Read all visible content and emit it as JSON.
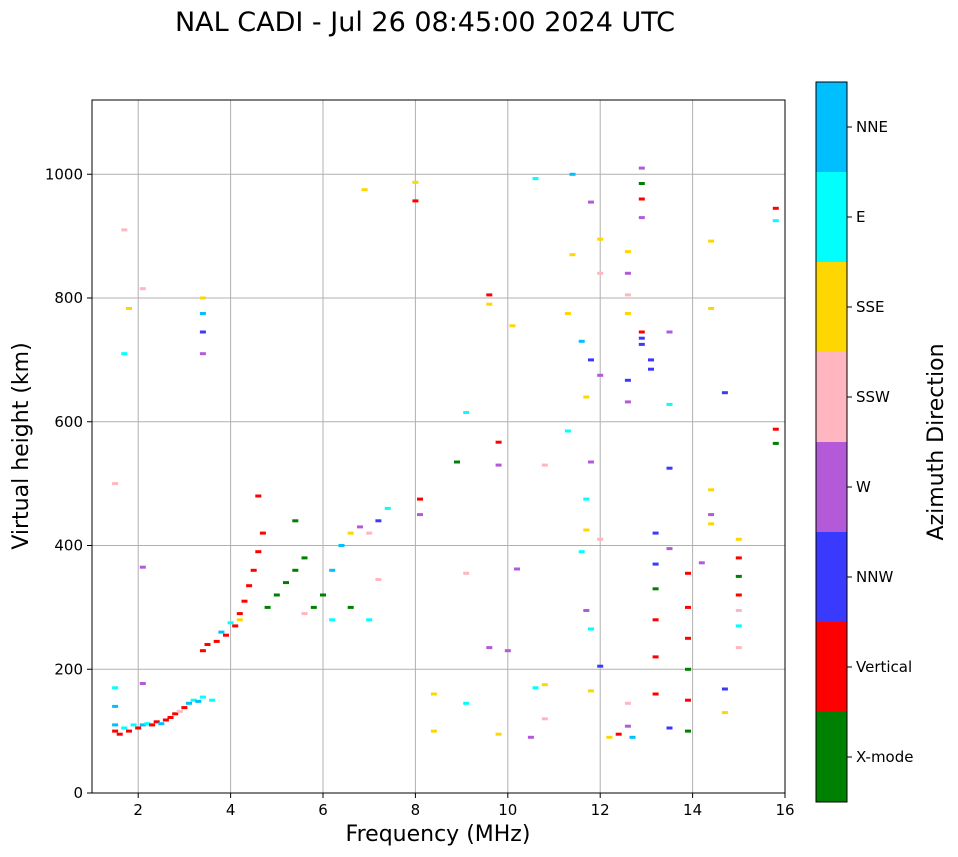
{
  "chart_data": {
    "type": "scatter",
    "title": "NAL CADI - Jul 26 08:45:00 2024 UTC",
    "xlabel": "Frequency (MHz)",
    "ylabel": "Virtual height (km)",
    "xlim": [
      1,
      16
    ],
    "ylim": [
      0,
      1120
    ],
    "xticks": [
      2,
      4,
      6,
      8,
      10,
      12,
      14,
      16
    ],
    "yticks": [
      0,
      200,
      400,
      600,
      800,
      1000
    ],
    "grid": true,
    "colorbar": {
      "label": "Azimuth Direction",
      "categories": [
        {
          "name": "X-mode",
          "color": "#008000"
        },
        {
          "name": "Vertical",
          "color": "#ff0000"
        },
        {
          "name": "NNW",
          "color": "#3a3aff"
        },
        {
          "name": "W",
          "color": "#b45ad8"
        },
        {
          "name": "SSW",
          "color": "#ffb6c1"
        },
        {
          "name": "SSE",
          "color": "#ffd700"
        },
        {
          "name": "E",
          "color": "#00ffff"
        },
        {
          "name": "NNE",
          "color": "#00bfff"
        }
      ]
    },
    "echoes": [
      {
        "f": 1.5,
        "h": 100,
        "d": "Vertical"
      },
      {
        "f": 1.5,
        "h": 110,
        "d": "NNE"
      },
      {
        "f": 1.5,
        "h": 140,
        "d": "NNE"
      },
      {
        "f": 1.5,
        "h": 170,
        "d": "E"
      },
      {
        "f": 1.6,
        "h": 95,
        "d": "Vertical"
      },
      {
        "f": 1.7,
        "h": 105,
        "d": "E"
      },
      {
        "f": 1.8,
        "h": 100,
        "d": "Vertical"
      },
      {
        "f": 1.9,
        "h": 110,
        "d": "E"
      },
      {
        "f": 2.0,
        "h": 105,
        "d": "Vertical"
      },
      {
        "f": 2.1,
        "h": 110,
        "d": "NNE"
      },
      {
        "f": 2.2,
        "h": 112,
        "d": "E"
      },
      {
        "f": 2.3,
        "h": 110,
        "d": "Vertical"
      },
      {
        "f": 2.4,
        "h": 115,
        "d": "Vertical"
      },
      {
        "f": 2.5,
        "h": 112,
        "d": "NNE"
      },
      {
        "f": 2.6,
        "h": 118,
        "d": "Vertical"
      },
      {
        "f": 2.7,
        "h": 122,
        "d": "Vertical"
      },
      {
        "f": 2.8,
        "h": 128,
        "d": "Vertical"
      },
      {
        "f": 2.9,
        "h": 132,
        "d": "SSW"
      },
      {
        "f": 3.0,
        "h": 138,
        "d": "Vertical"
      },
      {
        "f": 3.1,
        "h": 145,
        "d": "NNE"
      },
      {
        "f": 3.2,
        "h": 150,
        "d": "E"
      },
      {
        "f": 3.3,
        "h": 148,
        "d": "NNE"
      },
      {
        "f": 3.4,
        "h": 155,
        "d": "E"
      },
      {
        "f": 3.6,
        "h": 150,
        "d": "E"
      },
      {
        "f": 1.5,
        "h": 500,
        "d": "SSW"
      },
      {
        "f": 1.7,
        "h": 710,
        "d": "E"
      },
      {
        "f": 1.7,
        "h": 910,
        "d": "SSW"
      },
      {
        "f": 1.8,
        "h": 783,
        "d": "SSE"
      },
      {
        "f": 2.1,
        "h": 815,
        "d": "SSW"
      },
      {
        "f": 2.1,
        "h": 365,
        "d": "W"
      },
      {
        "f": 2.1,
        "h": 177,
        "d": "W"
      },
      {
        "f": 3.4,
        "h": 710,
        "d": "W"
      },
      {
        "f": 3.4,
        "h": 745,
        "d": "NNW"
      },
      {
        "f": 3.4,
        "h": 775,
        "d": "NNE"
      },
      {
        "f": 3.4,
        "h": 800,
        "d": "SSE"
      },
      {
        "f": 3.4,
        "h": 230,
        "d": "Vertical"
      },
      {
        "f": 3.5,
        "h": 240,
        "d": "Vertical"
      },
      {
        "f": 3.7,
        "h": 245,
        "d": "Vertical"
      },
      {
        "f": 3.9,
        "h": 255,
        "d": "Vertical"
      },
      {
        "f": 4.1,
        "h": 270,
        "d": "Vertical"
      },
      {
        "f": 4.2,
        "h": 290,
        "d": "Vertical"
      },
      {
        "f": 4.3,
        "h": 310,
        "d": "Vertical"
      },
      {
        "f": 4.4,
        "h": 335,
        "d": "Vertical"
      },
      {
        "f": 4.5,
        "h": 360,
        "d": "Vertical"
      },
      {
        "f": 4.6,
        "h": 390,
        "d": "Vertical"
      },
      {
        "f": 4.7,
        "h": 420,
        "d": "Vertical"
      },
      {
        "f": 4.6,
        "h": 480,
        "d": "Vertical"
      },
      {
        "f": 3.8,
        "h": 260,
        "d": "NNE"
      },
      {
        "f": 4.0,
        "h": 275,
        "d": "E"
      },
      {
        "f": 4.2,
        "h": 280,
        "d": "SSE"
      },
      {
        "f": 4.8,
        "h": 300,
        "d": "X-mode"
      },
      {
        "f": 5.0,
        "h": 320,
        "d": "X-mode"
      },
      {
        "f": 5.2,
        "h": 340,
        "d": "X-mode"
      },
      {
        "f": 5.4,
        "h": 360,
        "d": "X-mode"
      },
      {
        "f": 5.6,
        "h": 380,
        "d": "X-mode"
      },
      {
        "f": 5.8,
        "h": 300,
        "d": "X-mode"
      },
      {
        "f": 6.0,
        "h": 320,
        "d": "X-mode"
      },
      {
        "f": 5.4,
        "h": 440,
        "d": "X-mode"
      },
      {
        "f": 5.6,
        "h": 290,
        "d": "SSW"
      },
      {
        "f": 6.2,
        "h": 360,
        "d": "NNE"
      },
      {
        "f": 6.4,
        "h": 400,
        "d": "NNE"
      },
      {
        "f": 6.6,
        "h": 420,
        "d": "SSE"
      },
      {
        "f": 6.8,
        "h": 430,
        "d": "W"
      },
      {
        "f": 7.0,
        "h": 420,
        "d": "SSW"
      },
      {
        "f": 7.2,
        "h": 440,
        "d": "NNW"
      },
      {
        "f": 7.4,
        "h": 460,
        "d": "E"
      },
      {
        "f": 6.2,
        "h": 280,
        "d": "E"
      },
      {
        "f": 6.6,
        "h": 300,
        "d": "X-mode"
      },
      {
        "f": 7.0,
        "h": 280,
        "d": "E"
      },
      {
        "f": 7.2,
        "h": 345,
        "d": "SSW"
      },
      {
        "f": 6.9,
        "h": 975,
        "d": "SSE"
      },
      {
        "f": 8.0,
        "h": 957,
        "d": "Vertical"
      },
      {
        "f": 8.0,
        "h": 987,
        "d": "SSE"
      },
      {
        "f": 8.1,
        "h": 475,
        "d": "Vertical"
      },
      {
        "f": 8.1,
        "h": 450,
        "d": "W"
      },
      {
        "f": 8.4,
        "h": 160,
        "d": "SSE"
      },
      {
        "f": 8.4,
        "h": 100,
        "d": "SSE"
      },
      {
        "f": 8.9,
        "h": 535,
        "d": "X-mode"
      },
      {
        "f": 9.1,
        "h": 615,
        "d": "E"
      },
      {
        "f": 9.1,
        "h": 145,
        "d": "E"
      },
      {
        "f": 9.1,
        "h": 355,
        "d": "SSW"
      },
      {
        "f": 9.6,
        "h": 805,
        "d": "Vertical"
      },
      {
        "f": 9.6,
        "h": 790,
        "d": "SSE"
      },
      {
        "f": 9.6,
        "h": 235,
        "d": "W"
      },
      {
        "f": 9.8,
        "h": 95,
        "d": "SSE"
      },
      {
        "f": 9.8,
        "h": 530,
        "d": "W"
      },
      {
        "f": 9.8,
        "h": 567,
        "d": "Vertical"
      },
      {
        "f": 10.0,
        "h": 230,
        "d": "W"
      },
      {
        "f": 10.1,
        "h": 755,
        "d": "SSE"
      },
      {
        "f": 10.2,
        "h": 362,
        "d": "W"
      },
      {
        "f": 10.5,
        "h": 90,
        "d": "W"
      },
      {
        "f": 10.6,
        "h": 170,
        "d": "E"
      },
      {
        "f": 10.6,
        "h": 993,
        "d": "E"
      },
      {
        "f": 10.8,
        "h": 530,
        "d": "SSW"
      },
      {
        "f": 10.8,
        "h": 120,
        "d": "SSW"
      },
      {
        "f": 10.8,
        "h": 175,
        "d": "SSE"
      },
      {
        "f": 11.3,
        "h": 585,
        "d": "E"
      },
      {
        "f": 11.3,
        "h": 775,
        "d": "SSE"
      },
      {
        "f": 11.4,
        "h": 870,
        "d": "SSE"
      },
      {
        "f": 11.4,
        "h": 1000,
        "d": "NNE"
      },
      {
        "f": 11.6,
        "h": 390,
        "d": "E"
      },
      {
        "f": 11.6,
        "h": 730,
        "d": "NNE"
      },
      {
        "f": 11.7,
        "h": 640,
        "d": "SSE"
      },
      {
        "f": 11.7,
        "h": 475,
        "d": "E"
      },
      {
        "f": 11.7,
        "h": 425,
        "d": "SSE"
      },
      {
        "f": 11.7,
        "h": 295,
        "d": "W"
      },
      {
        "f": 11.8,
        "h": 700,
        "d": "NNW"
      },
      {
        "f": 11.8,
        "h": 535,
        "d": "W"
      },
      {
        "f": 11.8,
        "h": 955,
        "d": "W"
      },
      {
        "f": 11.8,
        "h": 265,
        "d": "E"
      },
      {
        "f": 11.8,
        "h": 165,
        "d": "SSE"
      },
      {
        "f": 12.0,
        "h": 895,
        "d": "SSE"
      },
      {
        "f": 12.0,
        "h": 840,
        "d": "SSW"
      },
      {
        "f": 12.0,
        "h": 675,
        "d": "W"
      },
      {
        "f": 12.0,
        "h": 410,
        "d": "SSW"
      },
      {
        "f": 12.0,
        "h": 205,
        "d": "NNW"
      },
      {
        "f": 12.2,
        "h": 90,
        "d": "SSE"
      },
      {
        "f": 12.4,
        "h": 95,
        "d": "Vertical"
      },
      {
        "f": 12.6,
        "h": 875,
        "d": "SSE"
      },
      {
        "f": 12.6,
        "h": 840,
        "d": "W"
      },
      {
        "f": 12.6,
        "h": 805,
        "d": "SSW"
      },
      {
        "f": 12.6,
        "h": 775,
        "d": "SSE"
      },
      {
        "f": 12.6,
        "h": 667,
        "d": "NNW"
      },
      {
        "f": 12.6,
        "h": 632,
        "d": "W"
      },
      {
        "f": 12.6,
        "h": 145,
        "d": "SSW"
      },
      {
        "f": 12.6,
        "h": 108,
        "d": "W"
      },
      {
        "f": 12.7,
        "h": 90,
        "d": "NNE"
      },
      {
        "f": 12.9,
        "h": 1010,
        "d": "W"
      },
      {
        "f": 12.9,
        "h": 985,
        "d": "X-mode"
      },
      {
        "f": 12.9,
        "h": 960,
        "d": "Vertical"
      },
      {
        "f": 12.9,
        "h": 930,
        "d": "W"
      },
      {
        "f": 12.9,
        "h": 745,
        "d": "Vertical"
      },
      {
        "f": 12.9,
        "h": 735,
        "d": "NNW"
      },
      {
        "f": 12.9,
        "h": 725,
        "d": "NNW"
      },
      {
        "f": 13.1,
        "h": 700,
        "d": "NNW"
      },
      {
        "f": 13.1,
        "h": 685,
        "d": "NNW"
      },
      {
        "f": 13.2,
        "h": 420,
        "d": "NNW"
      },
      {
        "f": 13.2,
        "h": 370,
        "d": "NNW"
      },
      {
        "f": 13.2,
        "h": 330,
        "d": "X-mode"
      },
      {
        "f": 13.2,
        "h": 280,
        "d": "Vertical"
      },
      {
        "f": 13.2,
        "h": 220,
        "d": "Vertical"
      },
      {
        "f": 13.2,
        "h": 160,
        "d": "Vertical"
      },
      {
        "f": 13.5,
        "h": 745,
        "d": "W"
      },
      {
        "f": 13.5,
        "h": 628,
        "d": "E"
      },
      {
        "f": 13.5,
        "h": 525,
        "d": "NNW"
      },
      {
        "f": 13.5,
        "h": 395,
        "d": "W"
      },
      {
        "f": 13.5,
        "h": 105,
        "d": "NNW"
      },
      {
        "f": 13.9,
        "h": 355,
        "d": "Vertical"
      },
      {
        "f": 13.9,
        "h": 300,
        "d": "Vertical"
      },
      {
        "f": 13.9,
        "h": 250,
        "d": "Vertical"
      },
      {
        "f": 13.9,
        "h": 200,
        "d": "X-mode"
      },
      {
        "f": 13.9,
        "h": 150,
        "d": "Vertical"
      },
      {
        "f": 13.9,
        "h": 100,
        "d": "X-mode"
      },
      {
        "f": 14.2,
        "h": 372,
        "d": "W"
      },
      {
        "f": 14.4,
        "h": 892,
        "d": "SSE"
      },
      {
        "f": 14.4,
        "h": 783,
        "d": "SSE"
      },
      {
        "f": 14.4,
        "h": 490,
        "d": "SSE"
      },
      {
        "f": 14.4,
        "h": 450,
        "d": "W"
      },
      {
        "f": 14.4,
        "h": 435,
        "d": "SSE"
      },
      {
        "f": 14.7,
        "h": 647,
        "d": "NNW"
      },
      {
        "f": 14.7,
        "h": 168,
        "d": "NNW"
      },
      {
        "f": 14.7,
        "h": 130,
        "d": "SSE"
      },
      {
        "f": 15.0,
        "h": 410,
        "d": "SSE"
      },
      {
        "f": 15.0,
        "h": 380,
        "d": "Vertical"
      },
      {
        "f": 15.0,
        "h": 350,
        "d": "X-mode"
      },
      {
        "f": 15.0,
        "h": 320,
        "d": "Vertical"
      },
      {
        "f": 15.0,
        "h": 295,
        "d": "SSW"
      },
      {
        "f": 15.0,
        "h": 270,
        "d": "E"
      },
      {
        "f": 15.0,
        "h": 235,
        "d": "SSW"
      },
      {
        "f": 15.8,
        "h": 945,
        "d": "Vertical"
      },
      {
        "f": 15.8,
        "h": 925,
        "d": "E"
      },
      {
        "f": 15.8,
        "h": 588,
        "d": "Vertical"
      },
      {
        "f": 15.8,
        "h": 565,
        "d": "X-mode"
      }
    ]
  }
}
